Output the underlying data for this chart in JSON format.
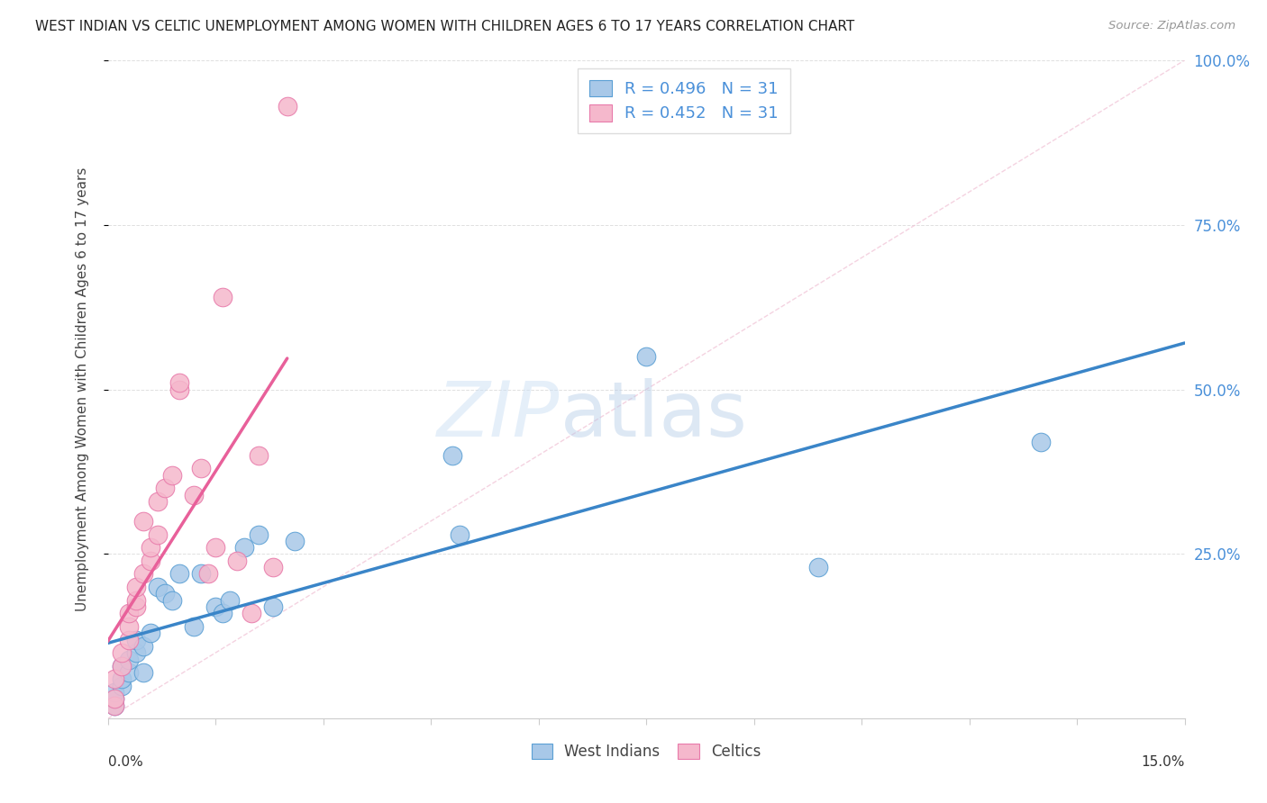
{
  "title": "WEST INDIAN VS CELTIC UNEMPLOYMENT AMONG WOMEN WITH CHILDREN AGES 6 TO 17 YEARS CORRELATION CHART",
  "source": "Source: ZipAtlas.com",
  "ylabel": "Unemployment Among Women with Children Ages 6 to 17 years",
  "west_indian_color": "#a8c8e8",
  "celtic_color": "#f5b8cc",
  "west_indian_edge_color": "#5a9fd4",
  "celtic_edge_color": "#e87aaa",
  "west_indian_line_color": "#3a85c8",
  "celtic_line_color": "#e8609a",
  "ref_line_color": "#f0c0d4",
  "label_color": "#4a90d9",
  "title_color": "#222222",
  "source_color": "#999999",
  "grid_color": "#e0e0e0",
  "background_color": "#ffffff",
  "xlim": [
    0.0,
    0.15
  ],
  "ylim": [
    0.0,
    1.0
  ],
  "wi_x": [
    0.001,
    0.001,
    0.001,
    0.002,
    0.002,
    0.002,
    0.003,
    0.003,
    0.004,
    0.004,
    0.005,
    0.005,
    0.006,
    0.007,
    0.008,
    0.009,
    0.01,
    0.012,
    0.013,
    0.015,
    0.016,
    0.017,
    0.019,
    0.021,
    0.023,
    0.026,
    0.048,
    0.049,
    0.075,
    0.099,
    0.13
  ],
  "wi_y": [
    0.02,
    0.03,
    0.04,
    0.05,
    0.06,
    0.08,
    0.07,
    0.09,
    0.1,
    0.12,
    0.07,
    0.11,
    0.13,
    0.2,
    0.19,
    0.18,
    0.22,
    0.14,
    0.22,
    0.17,
    0.16,
    0.18,
    0.26,
    0.28,
    0.17,
    0.27,
    0.4,
    0.28,
    0.55,
    0.23,
    0.42
  ],
  "ce_x": [
    0.001,
    0.001,
    0.001,
    0.002,
    0.002,
    0.003,
    0.003,
    0.003,
    0.004,
    0.004,
    0.004,
    0.005,
    0.005,
    0.006,
    0.006,
    0.007,
    0.007,
    0.008,
    0.009,
    0.01,
    0.01,
    0.012,
    0.013,
    0.014,
    0.015,
    0.016,
    0.018,
    0.02,
    0.021,
    0.023,
    0.025
  ],
  "ce_y": [
    0.02,
    0.03,
    0.06,
    0.08,
    0.1,
    0.12,
    0.14,
    0.16,
    0.17,
    0.18,
    0.2,
    0.22,
    0.3,
    0.24,
    0.26,
    0.28,
    0.33,
    0.35,
    0.37,
    0.5,
    0.51,
    0.34,
    0.38,
    0.22,
    0.26,
    0.64,
    0.24,
    0.16,
    0.4,
    0.23,
    0.93
  ],
  "legend_wi_label": "R = 0.496   N = 31",
  "legend_ce_label": "R = 0.452   N = 31",
  "legend_bottom_wi": "West Indians",
  "legend_bottom_ce": "Celtics",
  "ytick_labels": [
    "25.0%",
    "50.0%",
    "75.0%",
    "100.0%"
  ],
  "ytick_vals": [
    0.25,
    0.5,
    0.75,
    1.0
  ],
  "xtick_label_left": "0.0%",
  "xtick_label_right": "15.0%"
}
